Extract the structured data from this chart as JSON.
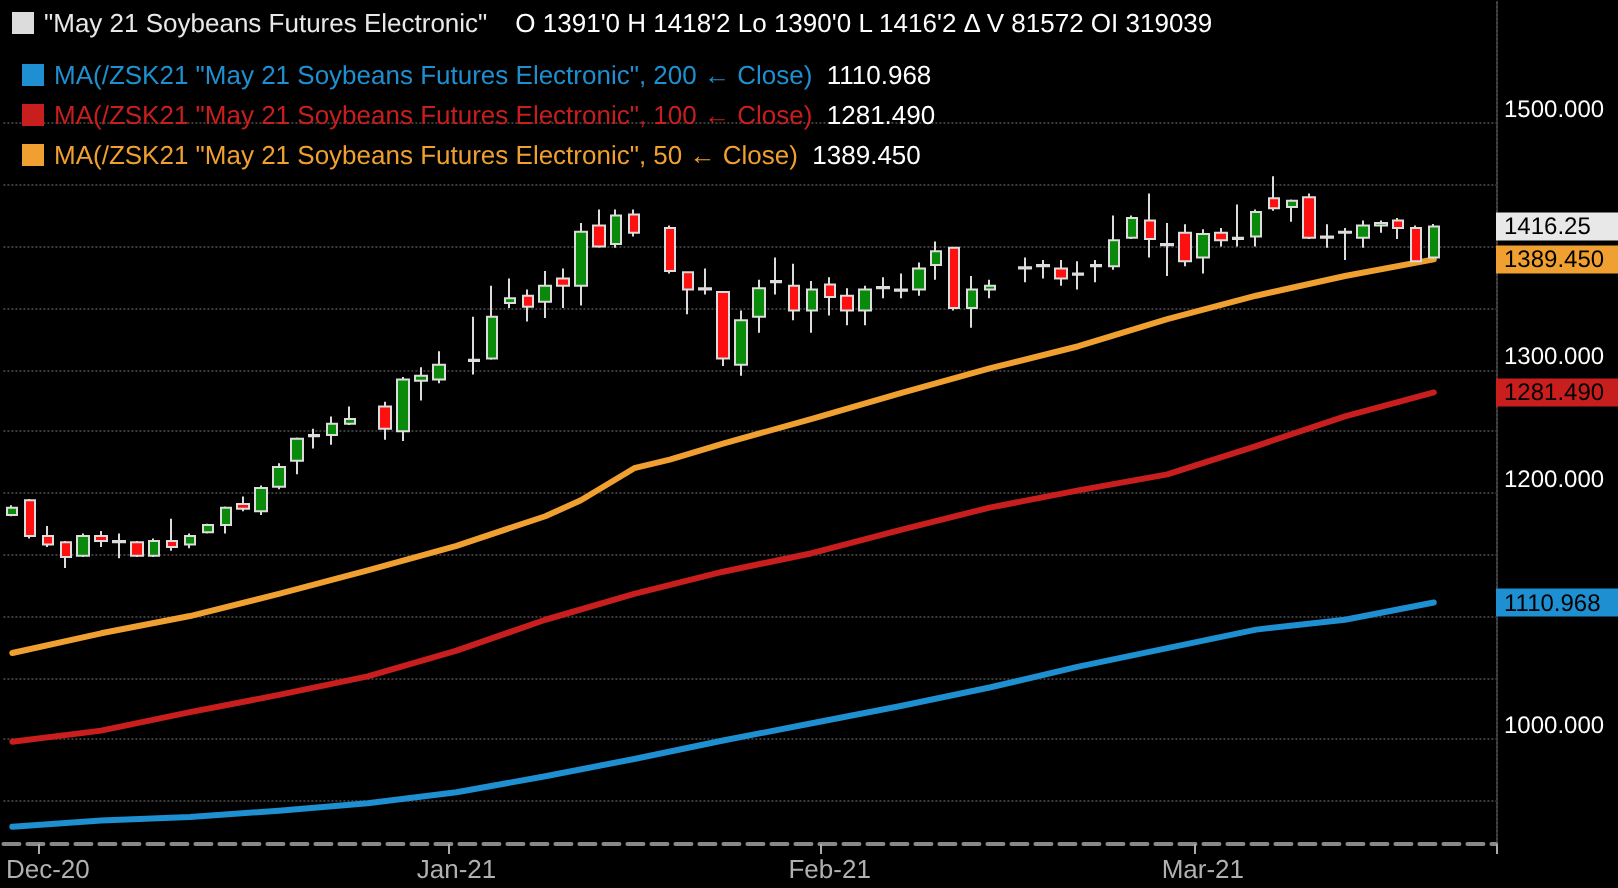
{
  "chart_data": {
    "type": "candlestick",
    "legend": "top left",
    "grid": "y",
    "categories": [
      null,
      null,
      "Dec-20",
      null,
      null,
      null,
      null,
      null,
      null,
      null,
      null,
      null,
      null,
      null,
      null,
      null,
      null,
      null,
      null,
      null,
      null,
      null,
      null,
      null,
      null,
      "Jan-21",
      null,
      null,
      null,
      null,
      null,
      null,
      null,
      null,
      null,
      null,
      null,
      null,
      null,
      null,
      null,
      null,
      null,
      null,
      null,
      null,
      "Feb-21",
      null,
      null,
      null,
      null,
      null,
      null,
      null,
      null,
      null,
      null,
      null,
      null,
      null,
      null,
      null,
      null,
      null,
      null,
      null,
      null,
      "Mar-21",
      null,
      null,
      null,
      null,
      null,
      null,
      null,
      null,
      null,
      null,
      null,
      null,
      null,
      null,
      null,
      null
    ],
    "title": "\"May 21 Soybeans Futures Electronic\"",
    "ohlc": [
      [
        1182,
        1190,
        1181,
        1188
      ],
      [
        1194,
        1195,
        1163,
        1165
      ],
      [
        1165,
        1173,
        1156,
        1158
      ],
      [
        1160,
        1161,
        1139,
        1148
      ],
      [
        1149,
        1167,
        1148,
        1165
      ],
      [
        1165,
        1169,
        1156,
        1161
      ],
      [
        1161,
        1167,
        1147,
        1160
      ],
      [
        1160,
        1161,
        1148,
        1149
      ],
      [
        1149,
        1163,
        1148,
        1161
      ],
      [
        1161,
        1179,
        1153,
        1156
      ],
      [
        1158,
        1167,
        1155,
        1165
      ],
      [
        1168,
        1175,
        1167,
        1174
      ],
      [
        1174,
        1189,
        1167,
        1188
      ],
      [
        1191,
        1197,
        1185,
        1187
      ],
      [
        1185,
        1206,
        1182,
        1204
      ],
      [
        1205,
        1224,
        1203,
        1221
      ],
      [
        1226,
        1245,
        1215,
        1244
      ],
      [
        1246,
        1252,
        1236,
        1247
      ],
      [
        1247,
        1262,
        1239,
        1256
      ],
      [
        1256,
        1270,
        1255,
        1260
      ],
      null,
      [
        1270,
        1274,
        1243,
        1252
      ],
      [
        1250,
        1294,
        1242,
        1292
      ],
      [
        1291,
        1302,
        1275,
        1295
      ],
      [
        1292,
        1315,
        1289,
        1304
      ],
      null,
      [
        1308,
        1343,
        1296,
        1307
      ],
      [
        1309,
        1368,
        1308,
        1343
      ],
      [
        1354,
        1374,
        1350,
        1358
      ],
      [
        1360,
        1365,
        1339,
        1351
      ],
      [
        1355,
        1380,
        1342,
        1368
      ],
      [
        1374,
        1382,
        1350,
        1368
      ],
      [
        1368,
        1419,
        1352,
        1412
      ],
      [
        1417,
        1430,
        1399,
        1400
      ],
      [
        1402,
        1430,
        1399,
        1425
      ],
      [
        1426,
        1430,
        1408,
        1411
      ],
      null,
      [
        1415,
        1417,
        1378,
        1380
      ],
      [
        1379,
        1379,
        1345,
        1365
      ],
      [
        1366,
        1382,
        1361,
        1365
      ],
      [
        1363,
        1363,
        1303,
        1309
      ],
      [
        1304,
        1348,
        1295,
        1340
      ],
      [
        1343,
        1373,
        1330,
        1366
      ],
      [
        1372,
        1391,
        1361,
        1371
      ],
      [
        1368,
        1386,
        1340,
        1348
      ],
      [
        1348,
        1372,
        1330,
        1365
      ],
      [
        1369,
        1375,
        1344,
        1359
      ],
      [
        1360,
        1366,
        1336,
        1348
      ],
      [
        1348,
        1368,
        1336,
        1365
      ],
      [
        1367,
        1375,
        1358,
        1366
      ],
      [
        1364,
        1378,
        1358,
        1365
      ],
      [
        1365,
        1387,
        1360,
        1382
      ],
      [
        1385,
        1404,
        1373,
        1396
      ],
      [
        1399,
        1399,
        1348,
        1350
      ],
      [
        1350,
        1376,
        1334,
        1365
      ],
      [
        1365,
        1373,
        1358,
        1368
      ],
      null,
      [
        1383,
        1391,
        1371,
        1382
      ],
      [
        1384,
        1389,
        1374,
        1385
      ],
      [
        1382,
        1389,
        1368,
        1374
      ],
      [
        1378,
        1388,
        1365,
        1377
      ],
      [
        1385,
        1389,
        1371,
        1384
      ],
      [
        1384,
        1425,
        1381,
        1405
      ],
      [
        1407,
        1425,
        1406,
        1423
      ],
      [
        1421,
        1443,
        1391,
        1406
      ],
      [
        1402,
        1419,
        1376,
        1401
      ],
      [
        1411,
        1418,
        1384,
        1388
      ],
      [
        1391,
        1414,
        1378,
        1410
      ],
      [
        1411,
        1415,
        1400,
        1405
      ],
      [
        1407,
        1434,
        1400,
        1406
      ],
      [
        1408,
        1430,
        1400,
        1428
      ],
      [
        1439,
        1457,
        1429,
        1431
      ],
      [
        1432,
        1438,
        1420,
        1437
      ],
      [
        1440,
        1443,
        1406,
        1407
      ],
      [
        1408,
        1418,
        1399,
        1407
      ],
      [
        1412,
        1415,
        1389,
        1411
      ],
      [
        1407,
        1421,
        1399,
        1417
      ],
      [
        1417,
        1421,
        1411,
        1419
      ],
      [
        1421,
        1423,
        1406,
        1415
      ],
      [
        1415,
        1417,
        1388,
        1388
      ],
      [
        1391,
        1418.25,
        1390,
        1416.25
      ],
      null,
      null,
      null
    ],
    "series": [
      {
        "type": "line",
        "name": "MA(/ZSK21 \"May 21 Soybeans Futures Electronic\", 200 ← Close)",
        "color": "#1e8fd0",
        "values": [
          929,
          null,
          null,
          null,
          null,
          934,
          null,
          null,
          null,
          null,
          937,
          null,
          null,
          null,
          null,
          942,
          null,
          null,
          null,
          null,
          948,
          null,
          null,
          null,
          null,
          957,
          null,
          null,
          null,
          null,
          970,
          null,
          null,
          null,
          null,
          984,
          null,
          null,
          null,
          null,
          999,
          null,
          null,
          null,
          null,
          1013,
          null,
          null,
          null,
          null,
          1027,
          null,
          null,
          null,
          null,
          1042,
          null,
          null,
          null,
          null,
          1059,
          null,
          null,
          null,
          null,
          1074,
          null,
          null,
          null,
          null,
          1089,
          null,
          null,
          null,
          null,
          1097,
          null,
          null,
          null,
          null,
          1110.968,
          null,
          null,
          null
        ]
      },
      {
        "type": "line",
        "name": "MA(/ZSK21 \"May 21 Soybeans Futures Electronic\", 100 ← Close)",
        "color": "#c81e1e",
        "values": [
          998,
          null,
          null,
          null,
          null,
          1007,
          null,
          null,
          null,
          null,
          1022,
          null,
          null,
          null,
          null,
          1036,
          null,
          null,
          null,
          null,
          1051,
          null,
          null,
          null,
          null,
          1072,
          null,
          null,
          null,
          null,
          1097,
          null,
          null,
          null,
          null,
          1118,
          null,
          null,
          null,
          null,
          1136,
          null,
          null,
          null,
          null,
          1151,
          null,
          null,
          null,
          null,
          1170,
          null,
          null,
          null,
          null,
          1188,
          null,
          null,
          null,
          null,
          1202,
          null,
          null,
          null,
          null,
          1215,
          null,
          null,
          null,
          null,
          1238,
          null,
          null,
          null,
          null,
          1262,
          null,
          null,
          null,
          null,
          1281.49,
          null,
          null,
          null
        ]
      },
      {
        "type": "line",
        "name": "MA(/ZSK21 \"May 21 Soybeans Futures Electronic\", 50 ← Close)",
        "color": "#f0a030",
        "values": [
          1070,
          null,
          null,
          null,
          null,
          1086,
          null,
          null,
          null,
          null,
          1100,
          null,
          null,
          null,
          null,
          1118,
          null,
          null,
          null,
          null,
          1137,
          null,
          null,
          null,
          null,
          1157,
          null,
          null,
          null,
          null,
          1181,
          null,
          1194,
          null,
          null,
          1220,
          null,
          1227,
          null,
          null,
          1240,
          null,
          null,
          null,
          null,
          1260,
          null,
          null,
          null,
          null,
          1281,
          null,
          null,
          null,
          null,
          1301,
          null,
          null,
          null,
          null,
          1319,
          null,
          null,
          null,
          null,
          1341,
          null,
          null,
          null,
          null,
          1360,
          null,
          null,
          null,
          null,
          1376,
          null,
          null,
          null,
          null,
          1389.45,
          null,
          null,
          null
        ]
      }
    ],
    "ylim": [
      915,
      1600
    ],
    "yticks": [
      {
        "value": 950,
        "label": null
      },
      {
        "value": 1000,
        "label": "1000.000"
      },
      {
        "value": 1050,
        "label": null
      },
      {
        "value": 1100,
        "label": null
      },
      {
        "value": 1150,
        "label": null
      },
      {
        "value": 1200,
        "label": "1200.000"
      },
      {
        "value": 1250,
        "label": null
      },
      {
        "value": 1300,
        "label": "1300.000"
      },
      {
        "value": 1350,
        "label": null
      },
      {
        "value": 1400,
        "label": null
      },
      {
        "value": 1450,
        "label": null
      },
      {
        "value": 1500,
        "label": "1500.000"
      }
    ],
    "annotations": [
      "O 1391'0  H 1418'2  Lo 1390'0  L 1416'2  Δ  V 81572  OI 319039",
      "1416.25",
      "1110.968",
      "1281.490",
      "1389.450"
    ]
  }
}
